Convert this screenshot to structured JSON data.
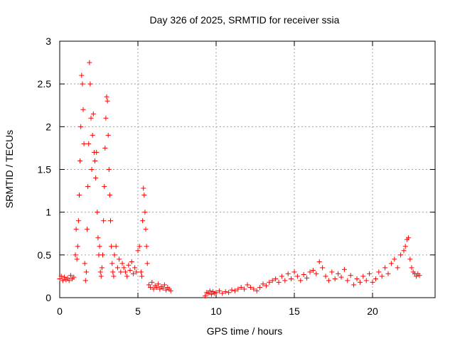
{
  "chart_data": {
    "type": "scatter",
    "title": "Day 326 of 2025, SRMTID for receiver ssia",
    "xlabel": "GPS time / hours",
    "ylabel": "SRMTID / TECUs",
    "xlim": [
      0,
      24
    ],
    "ylim": [
      0,
      3
    ],
    "xticks": [
      0,
      5,
      10,
      15,
      20
    ],
    "yticks": [
      0,
      0.5,
      1,
      1.5,
      2,
      2.5,
      3
    ],
    "xtick_labels": [
      "0",
      "5",
      "10",
      "15",
      "20"
    ],
    "ytick_labels": [
      "0",
      "0.5",
      "1",
      "1.5",
      "2",
      "2.5",
      "3"
    ],
    "grid": true,
    "marker": "+",
    "color": "#ff0000",
    "series": [
      {
        "name": "SRMTID",
        "x": [
          0.0,
          0.1,
          0.2,
          0.3,
          0.4,
          0.5,
          0.6,
          0.7,
          0.8,
          0.9,
          1.0,
          1.05,
          1.1,
          1.15,
          1.2,
          1.25,
          1.3,
          1.35,
          1.4,
          1.45,
          1.5,
          1.55,
          1.6,
          1.65,
          1.7,
          1.75,
          1.8,
          1.85,
          1.9,
          1.95,
          2.0,
          2.05,
          2.1,
          2.15,
          2.2,
          2.25,
          2.3,
          2.35,
          2.4,
          2.45,
          2.5,
          2.55,
          2.6,
          2.65,
          2.7,
          2.75,
          2.8,
          2.85,
          2.9,
          2.95,
          3.0,
          3.05,
          3.1,
          3.15,
          3.2,
          3.25,
          3.3,
          3.35,
          3.4,
          3.45,
          3.5,
          3.6,
          3.7,
          3.8,
          3.9,
          4.0,
          4.1,
          4.2,
          4.3,
          4.4,
          4.5,
          4.6,
          4.7,
          4.8,
          4.9,
          5.0,
          5.1,
          5.2,
          5.25,
          5.3,
          5.35,
          5.4,
          5.45,
          5.5,
          5.55,
          5.6,
          5.7,
          5.8,
          5.9,
          6.0,
          6.1,
          6.2,
          6.3,
          6.4,
          6.5,
          6.6,
          6.7,
          6.8,
          6.9,
          7.0,
          7.1,
          9.3,
          9.4,
          9.5,
          9.6,
          9.7,
          9.8,
          9.9,
          10.0,
          10.2,
          10.4,
          10.6,
          10.8,
          11.0,
          11.2,
          11.4,
          11.6,
          11.8,
          12.0,
          12.2,
          12.4,
          12.6,
          12.8,
          13.0,
          13.2,
          13.4,
          13.6,
          13.8,
          14.0,
          14.2,
          14.4,
          14.6,
          14.8,
          15.0,
          15.2,
          15.4,
          15.6,
          15.8,
          16.0,
          16.2,
          16.4,
          16.6,
          16.8,
          17.0,
          17.2,
          17.4,
          17.6,
          17.8,
          18.0,
          18.2,
          18.4,
          18.6,
          18.8,
          19.0,
          19.2,
          19.4,
          19.6,
          19.8,
          20.0,
          20.2,
          20.4,
          20.6,
          20.8,
          21.0,
          21.2,
          21.4,
          21.6,
          21.8,
          22.0,
          22.1,
          22.2,
          22.3,
          22.4,
          22.5,
          22.6,
          22.7,
          22.8,
          22.9,
          23.0
        ],
        "y": [
          0.22,
          0.25,
          0.2,
          0.24,
          0.21,
          0.23,
          0.2,
          0.26,
          0.22,
          0.24,
          0.5,
          0.8,
          0.45,
          0.6,
          0.9,
          1.2,
          1.6,
          2.0,
          2.6,
          2.5,
          2.2,
          1.8,
          0.4,
          0.2,
          0.3,
          0.8,
          1.3,
          1.8,
          2.75,
          2.5,
          2.1,
          1.5,
          1.9,
          2.15,
          1.7,
          1.6,
          1.4,
          1.7,
          1.0,
          0.7,
          0.5,
          0.6,
          0.3,
          0.25,
          0.35,
          0.5,
          0.9,
          1.3,
          1.75,
          2.1,
          2.35,
          2.3,
          1.9,
          1.5,
          1.2,
          0.9,
          0.6,
          0.4,
          0.3,
          0.25,
          0.5,
          0.6,
          0.35,
          0.45,
          0.3,
          0.4,
          0.35,
          0.3,
          0.25,
          0.38,
          0.32,
          0.42,
          0.28,
          0.35,
          0.3,
          0.55,
          0.6,
          0.3,
          0.25,
          0.9,
          1.28,
          1.2,
          1.0,
          0.8,
          0.6,
          0.4,
          0.15,
          0.12,
          0.18,
          0.1,
          0.14,
          0.12,
          0.16,
          0.1,
          0.13,
          0.11,
          0.15,
          0.09,
          0.12,
          0.1,
          0.08,
          0.02,
          0.06,
          0.05,
          0.08,
          0.04,
          0.07,
          0.05,
          0.06,
          0.08,
          0.05,
          0.07,
          0.06,
          0.09,
          0.08,
          0.1,
          0.12,
          0.1,
          0.15,
          0.12,
          0.1,
          0.08,
          0.12,
          0.16,
          0.14,
          0.18,
          0.2,
          0.22,
          0.18,
          0.25,
          0.2,
          0.28,
          0.22,
          0.3,
          0.25,
          0.2,
          0.27,
          0.23,
          0.3,
          0.32,
          0.28,
          0.42,
          0.35,
          0.25,
          0.2,
          0.3,
          0.22,
          0.28,
          0.24,
          0.33,
          0.2,
          0.26,
          0.15,
          0.22,
          0.18,
          0.25,
          0.2,
          0.28,
          0.18,
          0.22,
          0.3,
          0.25,
          0.35,
          0.28,
          0.4,
          0.45,
          0.35,
          0.5,
          0.55,
          0.6,
          0.68,
          0.7,
          0.45,
          0.35,
          0.3,
          0.28,
          0.25,
          0.28,
          0.26
        ]
      }
    ]
  }
}
